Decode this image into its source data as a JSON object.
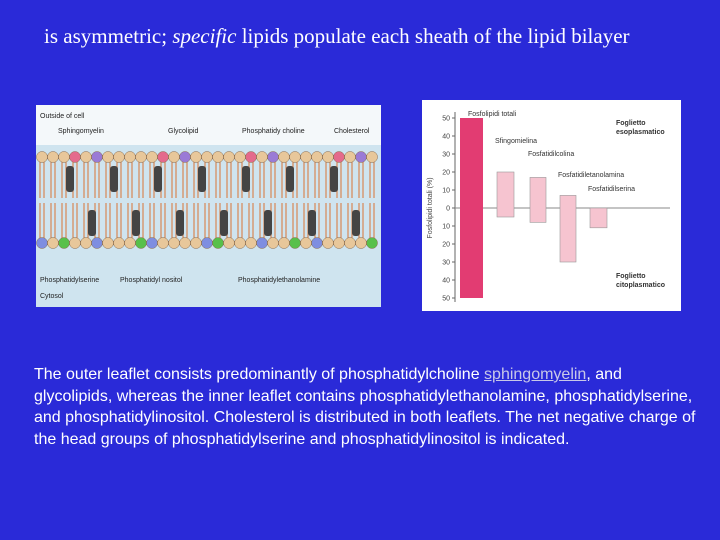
{
  "title": {
    "parts": [
      "is asymmetric; ",
      "specific",
      " lipids populate each sheath of the lipid bilayer"
    ]
  },
  "membrane_figure": {
    "labels": {
      "outside": "Outside of cell",
      "sphingomyelin": "Sphingomyelin",
      "glycolipid": "Glycolipid",
      "phosphatidylcholine": "Phosphatidy choline",
      "cholesterol": "Cholesterol",
      "phosphatidylserine": "Phosphatidylserine",
      "phosphatidylinositol": "Phosphatidyl nositol",
      "phosphatidylethanolamine": "Phosphatidylethanolamine",
      "cytosol": "Cytosol"
    }
  },
  "distribution_figure": {
    "axis_label": "Fosfolipidi totali (%)",
    "ticks": [
      50,
      40,
      30,
      20,
      10,
      0,
      {
        "value": -10,
        "label": "10"
      },
      {
        "value": -20,
        "label": "20"
      },
      {
        "value": -30,
        "label": "30"
      },
      {
        "value": -40,
        "label": "40"
      },
      {
        "value": -50,
        "label": "50"
      }
    ],
    "bars": [
      {
        "name": "Fosfolipidi totali",
        "outer": 50,
        "inner": 50,
        "color": "#e23c72"
      },
      {
        "name": "Sfingomielina",
        "outer": 20,
        "inner": 5,
        "color": "#f6c4d0"
      },
      {
        "name": "Fosfatidilcolina",
        "outer": 17,
        "inner": 8,
        "color": "#f6c4d0"
      },
      {
        "name": "Fosfatidiletanolamina",
        "outer": 7,
        "inner": 30,
        "color": "#f6c4d0"
      },
      {
        "name": "Fosfatidilserina",
        "outer": 0,
        "inner": 11,
        "color": "#f6c4d0"
      }
    ],
    "outer_leaflet": [
      "Foglietto",
      "esoplasmatico"
    ],
    "inner_leaflet": [
      "Foglietto",
      "citoplasmatico"
    ]
  },
  "paragraph": {
    "before": "The outer leaflet consists predominantly of phosphatidylcholine ",
    "link": "sphingomyelin",
    "after": ", and glycolipids, whereas the inner leaflet contains phosphatidylethanolamine, phosphatidylserine, and phosphatidylinositol. Cholesterol is distributed in both leaflets. The net negative charge of the head groups of phosphatidylserine and phosphatidylinositol is indicated."
  }
}
